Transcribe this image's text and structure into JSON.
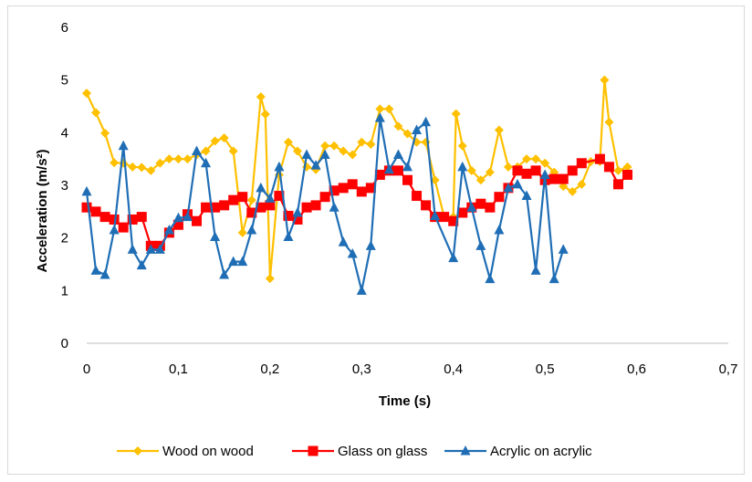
{
  "chart_data": {
    "type": "scatter",
    "title": "",
    "xlabel": "Time (s)",
    "ylabel": "Acceleration (m/s²)",
    "xlim": [
      0,
      0.7
    ],
    "ylim": [
      0,
      6
    ],
    "x_ticks": [
      "0",
      "0,1",
      "0,2",
      "0,3",
      "0,4",
      "0,5",
      "0,6",
      "0,7"
    ],
    "y_ticks": [
      "0",
      "1",
      "2",
      "3",
      "4",
      "5",
      "6"
    ],
    "grid": false,
    "legend_position": "bottom",
    "series": [
      {
        "name": "Wood on wood",
        "color": "#FFC000",
        "marker": "diamond",
        "points": [
          [
            0.0,
            4.75
          ],
          [
            0.01,
            4.38
          ],
          [
            0.02,
            3.99
          ],
          [
            0.03,
            3.43
          ],
          [
            0.04,
            3.42
          ],
          [
            0.05,
            3.35
          ],
          [
            0.06,
            3.34
          ],
          [
            0.07,
            3.28
          ],
          [
            0.08,
            3.42
          ],
          [
            0.09,
            3.5
          ],
          [
            0.1,
            3.5
          ],
          [
            0.11,
            3.5
          ],
          [
            0.12,
            3.58
          ],
          [
            0.13,
            3.65
          ],
          [
            0.14,
            3.84
          ],
          [
            0.15,
            3.9
          ],
          [
            0.16,
            3.65
          ],
          [
            0.17,
            2.1
          ],
          [
            0.18,
            2.72
          ],
          [
            0.19,
            4.68
          ],
          [
            0.195,
            4.35
          ],
          [
            0.2,
            1.23
          ],
          [
            0.21,
            3.2
          ],
          [
            0.22,
            3.82
          ],
          [
            0.23,
            3.65
          ],
          [
            0.24,
            3.35
          ],
          [
            0.25,
            3.3
          ],
          [
            0.26,
            3.75
          ],
          [
            0.27,
            3.75
          ],
          [
            0.28,
            3.65
          ],
          [
            0.29,
            3.58
          ],
          [
            0.3,
            3.82
          ],
          [
            0.31,
            3.78
          ],
          [
            0.32,
            4.45
          ],
          [
            0.33,
            4.45
          ],
          [
            0.34,
            4.12
          ],
          [
            0.35,
            3.98
          ],
          [
            0.36,
            3.82
          ],
          [
            0.37,
            3.82
          ],
          [
            0.38,
            3.1
          ],
          [
            0.39,
            2.4
          ],
          [
            0.4,
            2.4
          ],
          [
            0.403,
            4.36
          ],
          [
            0.41,
            3.75
          ],
          [
            0.42,
            3.28
          ],
          [
            0.43,
            3.1
          ],
          [
            0.44,
            3.25
          ],
          [
            0.45,
            4.05
          ],
          [
            0.46,
            3.35
          ],
          [
            0.47,
            3.35
          ],
          [
            0.48,
            3.5
          ],
          [
            0.49,
            3.5
          ],
          [
            0.5,
            3.42
          ],
          [
            0.51,
            3.25
          ],
          [
            0.52,
            2.98
          ],
          [
            0.53,
            2.88
          ],
          [
            0.54,
            3.02
          ],
          [
            0.55,
            3.45
          ],
          [
            0.56,
            3.45
          ],
          [
            0.565,
            5.0
          ],
          [
            0.57,
            4.2
          ],
          [
            0.58,
            3.28
          ],
          [
            0.59,
            3.35
          ]
        ]
      },
      {
        "name": "Glass on glass",
        "color": "#FF0000",
        "marker": "square",
        "points": [
          [
            0.0,
            2.58
          ],
          [
            0.01,
            2.5
          ],
          [
            0.02,
            2.4
          ],
          [
            0.03,
            2.35
          ],
          [
            0.04,
            2.2
          ],
          [
            0.05,
            2.35
          ],
          [
            0.06,
            2.4
          ],
          [
            0.07,
            1.85
          ],
          [
            0.08,
            1.85
          ],
          [
            0.09,
            2.1
          ],
          [
            0.1,
            2.25
          ],
          [
            0.11,
            2.45
          ],
          [
            0.12,
            2.32
          ],
          [
            0.13,
            2.58
          ],
          [
            0.14,
            2.58
          ],
          [
            0.15,
            2.62
          ],
          [
            0.16,
            2.72
          ],
          [
            0.17,
            2.78
          ],
          [
            0.18,
            2.48
          ],
          [
            0.19,
            2.58
          ],
          [
            0.2,
            2.62
          ],
          [
            0.21,
            2.8
          ],
          [
            0.22,
            2.42
          ],
          [
            0.23,
            2.35
          ],
          [
            0.24,
            2.58
          ],
          [
            0.25,
            2.62
          ],
          [
            0.26,
            2.78
          ],
          [
            0.27,
            2.9
          ],
          [
            0.28,
            2.95
          ],
          [
            0.29,
            3.02
          ],
          [
            0.3,
            2.88
          ],
          [
            0.31,
            2.95
          ],
          [
            0.32,
            3.2
          ],
          [
            0.33,
            3.28
          ],
          [
            0.34,
            3.28
          ],
          [
            0.35,
            3.1
          ],
          [
            0.36,
            2.8
          ],
          [
            0.37,
            2.62
          ],
          [
            0.38,
            2.4
          ],
          [
            0.39,
            2.4
          ],
          [
            0.4,
            2.32
          ],
          [
            0.41,
            2.48
          ],
          [
            0.42,
            2.58
          ],
          [
            0.43,
            2.65
          ],
          [
            0.44,
            2.58
          ],
          [
            0.45,
            2.78
          ],
          [
            0.46,
            2.95
          ],
          [
            0.47,
            3.28
          ],
          [
            0.48,
            3.22
          ],
          [
            0.49,
            3.28
          ],
          [
            0.5,
            3.1
          ],
          [
            0.51,
            3.12
          ],
          [
            0.52,
            3.12
          ],
          [
            0.53,
            3.28
          ],
          [
            0.54,
            3.42
          ],
          [
            0.56,
            3.5
          ],
          [
            0.57,
            3.35
          ],
          [
            0.58,
            3.02
          ],
          [
            0.59,
            3.2
          ]
        ]
      },
      {
        "name": "Acrylic on acrylic",
        "color": "#1F6EB5",
        "marker": "triangle",
        "points": [
          [
            0.0,
            2.88
          ],
          [
            0.01,
            1.38
          ],
          [
            0.02,
            1.3
          ],
          [
            0.03,
            2.15
          ],
          [
            0.04,
            3.75
          ],
          [
            0.05,
            1.78
          ],
          [
            0.06,
            1.48
          ],
          [
            0.07,
            1.78
          ],
          [
            0.08,
            1.78
          ],
          [
            0.09,
            2.15
          ],
          [
            0.1,
            2.38
          ],
          [
            0.11,
            2.4
          ],
          [
            0.12,
            3.65
          ],
          [
            0.13,
            3.42
          ],
          [
            0.14,
            2.02
          ],
          [
            0.15,
            1.3
          ],
          [
            0.16,
            1.55
          ],
          [
            0.17,
            1.55
          ],
          [
            0.18,
            2.15
          ],
          [
            0.19,
            2.95
          ],
          [
            0.2,
            2.75
          ],
          [
            0.21,
            3.35
          ],
          [
            0.22,
            2.02
          ],
          [
            0.23,
            2.48
          ],
          [
            0.24,
            3.58
          ],
          [
            0.25,
            3.38
          ],
          [
            0.26,
            3.58
          ],
          [
            0.27,
            2.58
          ],
          [
            0.28,
            1.92
          ],
          [
            0.29,
            1.7
          ],
          [
            0.3,
            1.0
          ],
          [
            0.31,
            1.85
          ],
          [
            0.32,
            4.28
          ],
          [
            0.33,
            3.3
          ],
          [
            0.34,
            3.58
          ],
          [
            0.35,
            3.35
          ],
          [
            0.36,
            4.05
          ],
          [
            0.37,
            4.2
          ],
          [
            0.38,
            2.42
          ],
          [
            0.4,
            1.62
          ],
          [
            0.41,
            3.35
          ],
          [
            0.42,
            2.58
          ],
          [
            0.43,
            1.85
          ],
          [
            0.44,
            1.22
          ],
          [
            0.45,
            2.15
          ],
          [
            0.46,
            2.95
          ],
          [
            0.47,
            3.02
          ],
          [
            0.48,
            2.8
          ],
          [
            0.49,
            1.38
          ],
          [
            0.5,
            3.2
          ],
          [
            0.51,
            1.22
          ],
          [
            0.52,
            1.78
          ]
        ]
      }
    ]
  }
}
